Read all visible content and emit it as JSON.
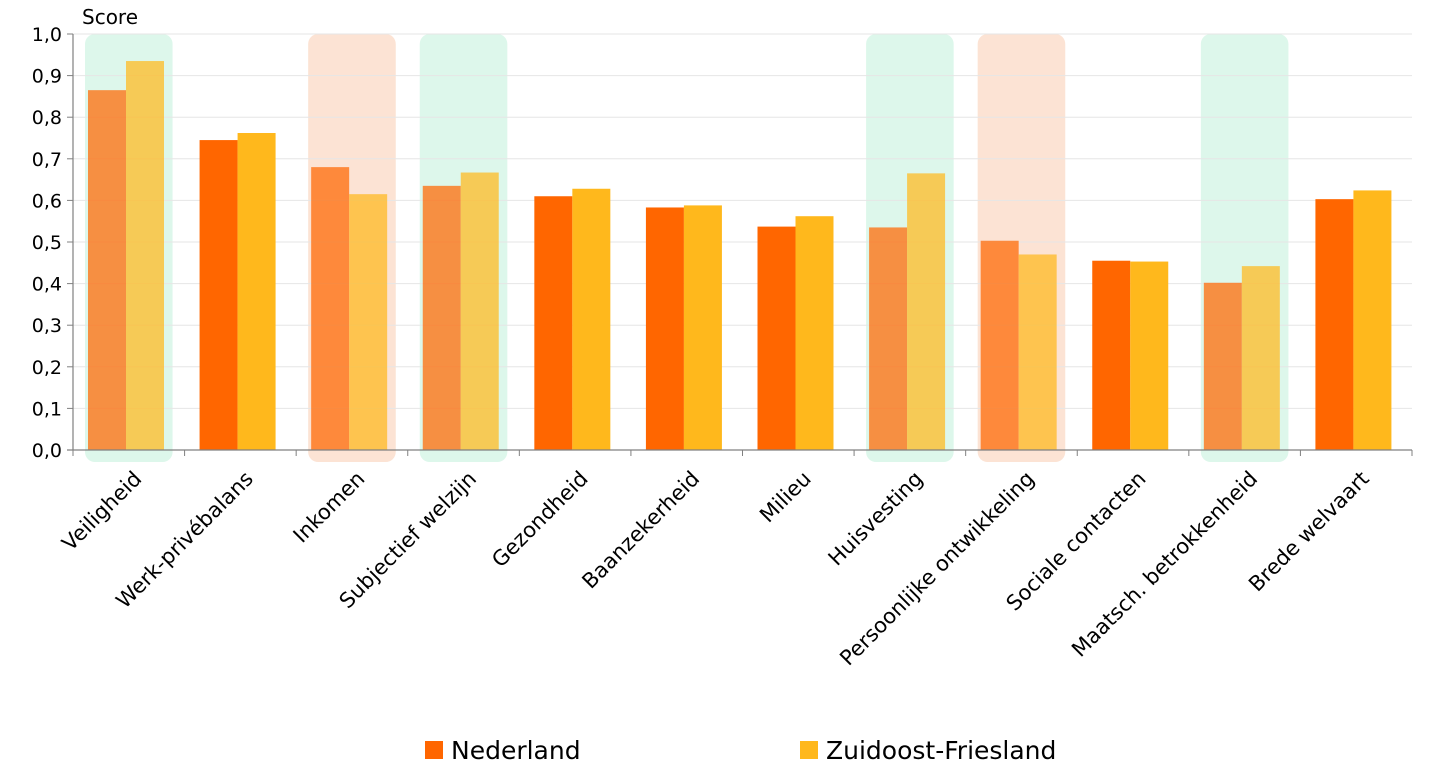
{
  "chart_data": {
    "type": "bar",
    "ylabel": "Score",
    "ylim": [
      0,
      1.0
    ],
    "ytick_step": 0.1,
    "yticks": [
      "0,0",
      "0,1",
      "0,2",
      "0,3",
      "0,4",
      "0,5",
      "0,6",
      "0,7",
      "0,8",
      "0,9",
      "1,0"
    ],
    "categories": [
      "Veiligheid",
      "Werk-privébalans",
      "Inkomen",
      "Subjectief welzijn",
      "Gezondheid",
      "Baanzekerheid",
      "Milieu",
      "Huisvesting",
      "Persoonlijke ontwikkeling",
      "Sociale contacten",
      "Maatsch. betrokkenheid",
      "Brede welvaart"
    ],
    "highlights": [
      "green",
      "none",
      "red",
      "green",
      "none",
      "none",
      "none",
      "green",
      "red",
      "none",
      "green",
      "none"
    ],
    "series": [
      {
        "name": "Nederland",
        "color": "#FF6600",
        "values": [
          0.865,
          0.745,
          0.68,
          0.635,
          0.61,
          0.583,
          0.537,
          0.535,
          0.503,
          0.455,
          0.402,
          0.603
        ]
      },
      {
        "name": "Zuidoost-Friesland",
        "color": "#FFB81C",
        "values": [
          0.935,
          0.762,
          0.615,
          0.667,
          0.628,
          0.588,
          0.562,
          0.665,
          0.47,
          0.453,
          0.442,
          0.624
        ]
      }
    ],
    "highlight_colors": {
      "green": "#DDF7EB",
      "red": "#FCE3D4"
    },
    "grid": true,
    "legend_position": "bottom"
  }
}
